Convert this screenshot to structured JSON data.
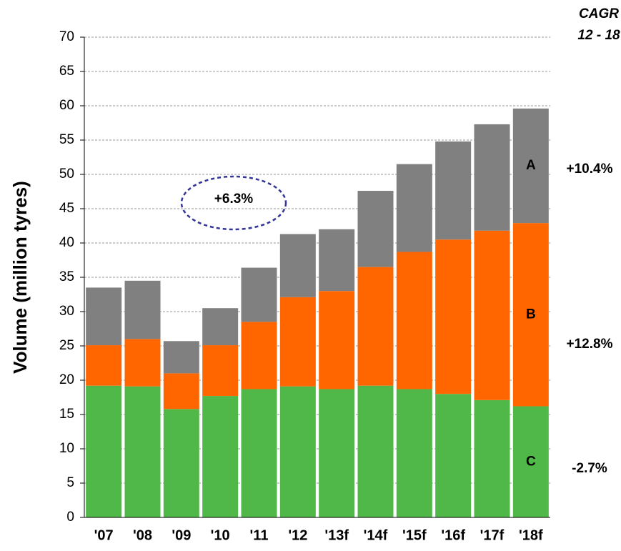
{
  "chart_data": {
    "type": "stacked_bar",
    "y_label": "Volume (million tyres)",
    "categories": [
      "'07",
      "'08",
      "'09",
      "'10",
      "'11",
      "'12",
      "'13f",
      "'14f",
      "'15f",
      "'16f",
      "'17f",
      "'18f"
    ],
    "series": [
      {
        "name": "C",
        "color": "#50b848",
        "cagr": "-2.7%",
        "values": [
          19.2,
          19.1,
          15.8,
          17.7,
          18.7,
          19.1,
          18.7,
          19.2,
          18.7,
          18.0,
          17.1,
          16.2
        ]
      },
      {
        "name": "B",
        "color": "#ff6600",
        "cagr": "+12.8%",
        "values": [
          5.9,
          6.9,
          5.2,
          7.4,
          9.8,
          13.0,
          14.3,
          17.3,
          20.0,
          22.5,
          24.7,
          26.7
        ]
      },
      {
        "name": "A",
        "color": "#808080",
        "cagr": "+10.4%",
        "values": [
          8.4,
          8.5,
          4.7,
          5.4,
          7.9,
          9.2,
          9.0,
          11.1,
          12.8,
          14.3,
          15.5,
          16.7
        ]
      }
    ],
    "cagr_header": [
      "CAGR",
      "12 - 18"
    ],
    "annotation": "+6.3%",
    "ylim": [
      0,
      70
    ],
    "yticks": [
      0,
      5,
      10,
      15,
      20,
      25,
      30,
      35,
      40,
      45,
      50,
      55,
      60,
      65,
      70
    ],
    "grid": true
  }
}
